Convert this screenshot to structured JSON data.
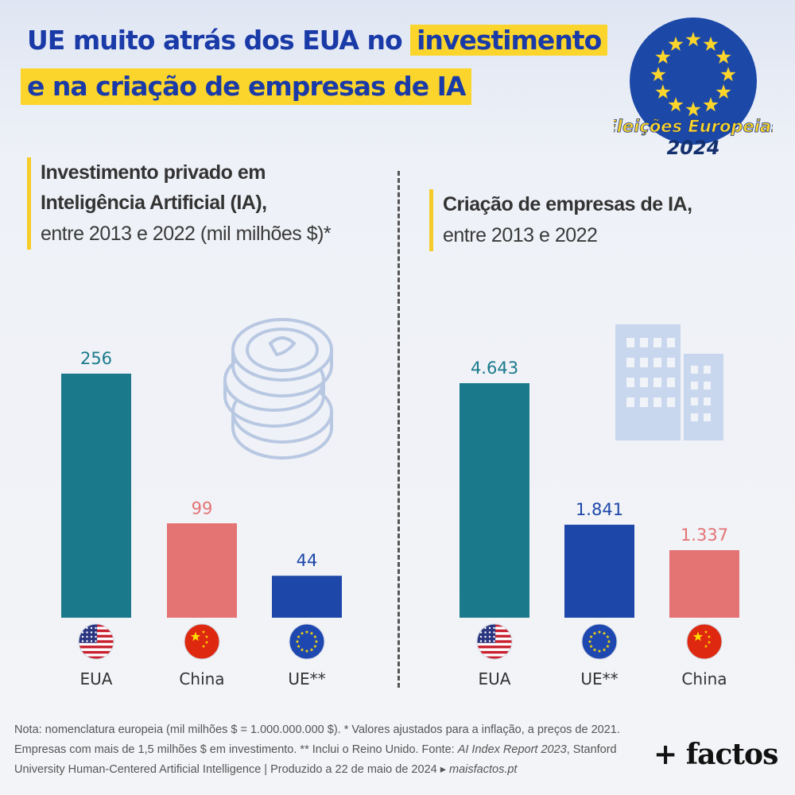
{
  "title": {
    "line1_pre": "UE muito atrás dos EUA no",
    "line1_hl": "investimento",
    "line2": "e na criação de empresas de IA"
  },
  "badge": {
    "line1": "Eleições Europeias",
    "line2": "2024"
  },
  "colors": {
    "eua": "#1a7a8c",
    "china": "#e47374",
    "ue": "#1d47a8",
    "title": "#1a3aa8",
    "highlight": "#fbd52b"
  },
  "left_section": {
    "line1": "Investimento privado em",
    "line2": "Inteligência Artificial (IA),",
    "line3": "entre 2013 e 2022 (mil milhões $)*"
  },
  "right_section": {
    "line1": "Criação de empresas de IA,",
    "line2": "entre 2013 e 2022"
  },
  "chart_data": [
    {
      "type": "bar",
      "title": "Investimento privado em Inteligência Artificial (IA), entre 2013 e 2022 (mil milhões $)*",
      "categories": [
        "EUA",
        "China",
        "UE**"
      ],
      "values": [
        256,
        99,
        44
      ],
      "value_labels": [
        "256",
        "99",
        "44"
      ],
      "flags": [
        "us-flag-icon",
        "china-flag-icon",
        "eu-flag-icon"
      ],
      "colors": [
        "#1a7a8c",
        "#e47374",
        "#1d47a8"
      ],
      "ylim": [
        0,
        256
      ],
      "grid": false,
      "legend": "none"
    },
    {
      "type": "bar",
      "title": "Criação de empresas de IA, entre 2013 e 2022",
      "categories": [
        "EUA",
        "UE**",
        "China"
      ],
      "values": [
        4643,
        1841,
        1337
      ],
      "value_labels": [
        "4.643",
        "1.841",
        "1.337"
      ],
      "flags": [
        "us-flag-icon",
        "eu-flag-icon",
        "china-flag-icon"
      ],
      "colors": [
        "#1a7a8c",
        "#1d47a8",
        "#e47374"
      ],
      "ylim": [
        0,
        4643
      ],
      "grid": false,
      "legend": "none"
    }
  ],
  "footnote": {
    "line1": "Nota: nomenclatura europeia (mil milhões $ = 1.000.000.000 $). * Valores ajustados para a inflação, a preços de 2021.",
    "line2_pre": "Empresas com mais de 1,5 milhões $ em investimento. ** Inclui o Reino Unido. Fonte: ",
    "line2_it": "AI Index Report 2023",
    "line2_post": ", Stanford",
    "line3_pre": "University Human-Centered Artificial Intelligence  |  Produzido a 22 de maio de 2024 ▸ ",
    "line3_it": "maisfactos.pt"
  },
  "logo": "+ factos"
}
